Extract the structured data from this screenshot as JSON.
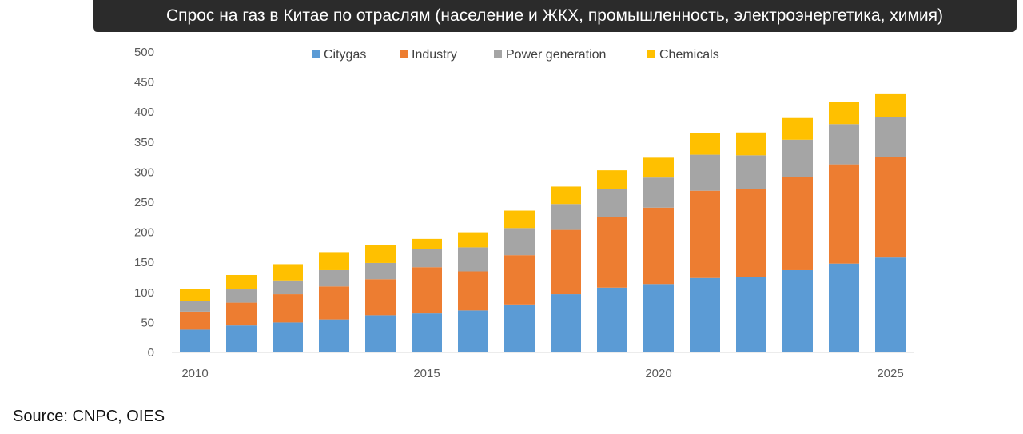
{
  "header": {
    "title": "Спрос на газ в Китае по отраслям (население и ЖКХ, промышленность, электроэнергетика, химия)"
  },
  "footer": {
    "source": "Source: CNPC, OIES"
  },
  "chart_data": {
    "type": "bar",
    "stacked": true,
    "title": "",
    "xlabel": "",
    "ylabel": "",
    "ylim": [
      0,
      500
    ],
    "yticks": [
      0,
      50,
      100,
      150,
      200,
      250,
      300,
      350,
      400,
      450,
      500
    ],
    "categories": [
      "2010",
      "2011",
      "2012",
      "2013",
      "2014",
      "2015",
      "2016",
      "2017",
      "2018",
      "2019",
      "2020",
      "2021",
      "2022",
      "2023",
      "2024",
      "2025"
    ],
    "xtick_labels": [
      "2010",
      "2015",
      "2020",
      "2025"
    ],
    "legend_position": "top",
    "grid": false,
    "series": [
      {
        "name": "Citygas",
        "color": "#5B9BD5",
        "values": [
          38,
          45,
          50,
          55,
          62,
          65,
          70,
          80,
          97,
          108,
          114,
          124,
          126,
          137,
          148,
          158
        ]
      },
      {
        "name": "Industry",
        "color": "#ED7D31",
        "values": [
          30,
          38,
          47,
          55,
          60,
          77,
          65,
          82,
          107,
          117,
          127,
          145,
          146,
          155,
          165,
          167
        ]
      },
      {
        "name": "Power generation",
        "color": "#A5A5A5",
        "values": [
          18,
          22,
          23,
          27,
          27,
          30,
          40,
          45,
          43,
          47,
          50,
          60,
          56,
          62,
          67,
          67
        ]
      },
      {
        "name": "Chemicals",
        "color": "#FFC000",
        "values": [
          20,
          24,
          27,
          30,
          30,
          17,
          25,
          29,
          29,
          31,
          33,
          36,
          38,
          36,
          37,
          39
        ]
      }
    ]
  }
}
